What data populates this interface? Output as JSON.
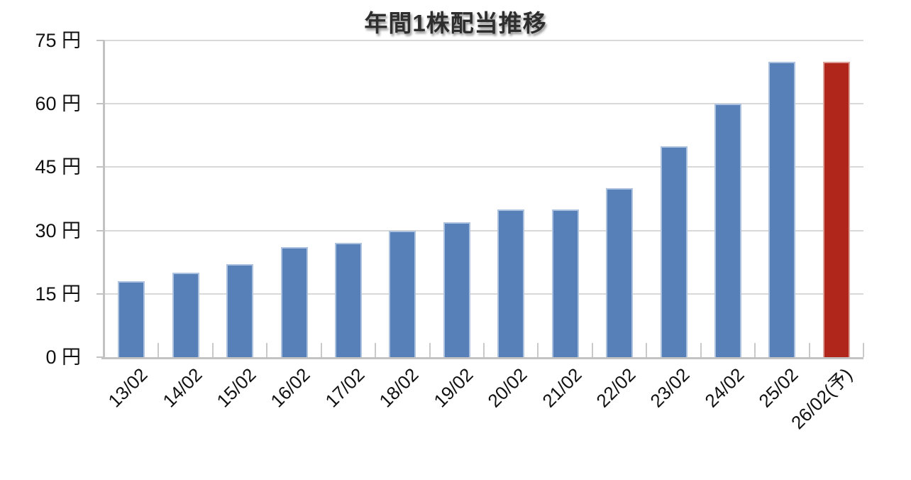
{
  "chart_data": {
    "type": "bar",
    "title": "年間1株配当推移",
    "categories": [
      "13/02",
      "14/02",
      "15/02",
      "16/02",
      "17/02",
      "18/02",
      "19/02",
      "20/02",
      "21/02",
      "22/02",
      "23/02",
      "24/02",
      "25/02",
      "26/02(予)"
    ],
    "values": [
      18,
      20,
      22,
      26,
      27,
      30,
      32,
      35,
      35,
      40,
      50,
      60,
      70,
      70
    ],
    "unit": "円",
    "yticks": [
      0,
      15,
      30,
      45,
      60,
      75
    ],
    "ytick_labels": [
      "0 円",
      "15 円",
      "30 円",
      "45 円",
      "60 円",
      "75 円"
    ],
    "ylim": [
      0,
      75
    ],
    "grid": true,
    "legend": "none",
    "xlabel": "",
    "ylabel": "",
    "colors": {
      "bar_fill": "#5880B8",
      "bar_edge": "#ACC2DF",
      "forecast_fill": "#B1261B",
      "forecast_edge": "#DBA098",
      "gridline": "#D9D9D9",
      "axis": "#C2C2C2"
    },
    "forecast_index": 13
  }
}
